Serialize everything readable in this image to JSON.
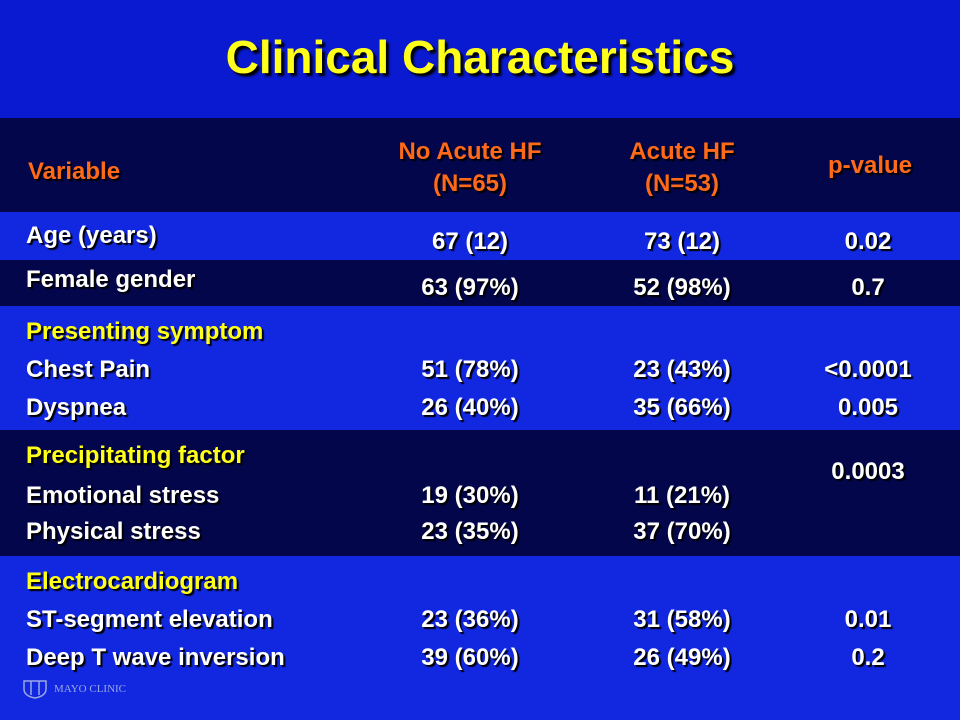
{
  "slide": {
    "title": "Clinical Characteristics",
    "logo_text": "MAYO CLINIC"
  },
  "table": {
    "headers": {
      "variable": "Variable",
      "no_acute_hf_line1": "No Acute HF",
      "no_acute_hf_line2": "(N=65)",
      "acute_hf_line1": "Acute HF",
      "acute_hf_line2": "(N=53)",
      "p_value": "p-value"
    },
    "rows": {
      "age": {
        "label": "Age (years)",
        "no_hf": "67 (12)",
        "hf": "73 (12)",
        "p": "0.02"
      },
      "female": {
        "label": "Female gender",
        "no_hf": "63 (97%)",
        "hf": "52 (98%)",
        "p": "0.7"
      },
      "presenting": {
        "heading": "Presenting symptom",
        "items": [
          {
            "label": "Chest Pain",
            "no_hf": "51 (78%)",
            "hf": "23 (43%)",
            "p": "<0.0001"
          },
          {
            "label": "Dyspnea",
            "no_hf": "26 (40%)",
            "hf": "35 (66%)",
            "p": "0.005"
          }
        ]
      },
      "precipitating": {
        "heading": "Precipitating factor",
        "p": "0.0003",
        "items": [
          {
            "label": "Emotional stress",
            "no_hf": "19 (30%)",
            "hf": "11 (21%)"
          },
          {
            "label": "Physical stress",
            "no_hf": "23 (35%)",
            "hf": "37 (70%)"
          }
        ]
      },
      "ecg": {
        "heading": "Electrocardiogram",
        "items": [
          {
            "label": "ST-segment elevation",
            "no_hf": "23 (36%)",
            "hf": "31 (58%)",
            "p": "0.01"
          },
          {
            "label": "Deep T wave inversion",
            "no_hf": "39 (60%)",
            "hf": "26 (49%)",
            "p": "0.2"
          }
        ]
      }
    }
  }
}
